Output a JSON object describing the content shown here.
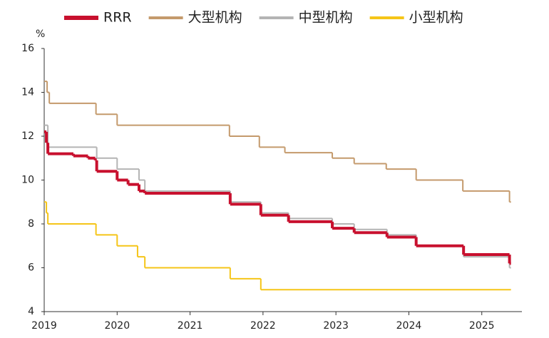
{
  "chart_data": {
    "type": "line",
    "step": true,
    "ylabel": "%",
    "xlim": [
      2019,
      2025.55
    ],
    "xticks": [
      2019,
      2020,
      2021,
      2022,
      2023,
      2024,
      2025
    ],
    "ylim": [
      4,
      16
    ],
    "yticks": [
      4,
      6,
      8,
      10,
      12,
      14,
      16
    ],
    "grid": false,
    "legend": "top",
    "series": [
      {
        "name": "RRR",
        "color": "#c8102e",
        "width": 4,
        "x": [
          2019,
          2019.03,
          2019.05,
          2019.4,
          2019.6,
          2019.7,
          2019.72,
          2020,
          2020.15,
          2020.3,
          2020.38,
          2021.55,
          2021.97,
          2022.35,
          2022.95,
          2023.25,
          2023.7,
          2024.1,
          2024.75,
          2025.38,
          2025.4
        ],
        "values": [
          12.2,
          11.7,
          11.2,
          11.1,
          11.0,
          10.9,
          10.4,
          10.0,
          9.8,
          9.5,
          9.4,
          8.9,
          8.4,
          8.1,
          7.8,
          7.6,
          7.4,
          7.0,
          6.6,
          6.2,
          6.2
        ]
      },
      {
        "name": "大型机构",
        "color": "#c49a6c",
        "width": 2,
        "x": [
          2019,
          2019.04,
          2019.07,
          2019.71,
          2020,
          2021.54,
          2021.95,
          2022.3,
          2022.95,
          2023.25,
          2023.69,
          2024.1,
          2024.74,
          2025.38,
          2025.4
        ],
        "values": [
          14.5,
          14.0,
          13.5,
          13.0,
          12.5,
          12.0,
          11.5,
          11.25,
          11.0,
          10.75,
          10.5,
          10.0,
          9.5,
          9.0,
          9.0
        ]
      },
      {
        "name": "中型机构",
        "color": "#b4b4b4",
        "width": 2,
        "x": [
          2019,
          2019.05,
          2019.72,
          2020,
          2020.3,
          2020.38,
          2021.55,
          2021.97,
          2022.35,
          2022.95,
          2023.25,
          2023.7,
          2024.1,
          2024.75,
          2025.38,
          2025.4
        ],
        "values": [
          12.5,
          11.5,
          11.0,
          10.5,
          10.0,
          9.5,
          9.0,
          8.5,
          8.25,
          8.0,
          7.75,
          7.5,
          7.0,
          6.5,
          6.0,
          6.0
        ]
      },
      {
        "name": "小型机构",
        "color": "#f5c518",
        "width": 2,
        "x": [
          2019,
          2019.03,
          2019.05,
          2019.71,
          2020,
          2020.28,
          2020.38,
          2021.55,
          2021.97,
          2025.4
        ],
        "values": [
          9.0,
          8.5,
          8.0,
          7.5,
          7.0,
          6.5,
          6.0,
          5.5,
          5.0,
          5.0
        ]
      }
    ]
  }
}
